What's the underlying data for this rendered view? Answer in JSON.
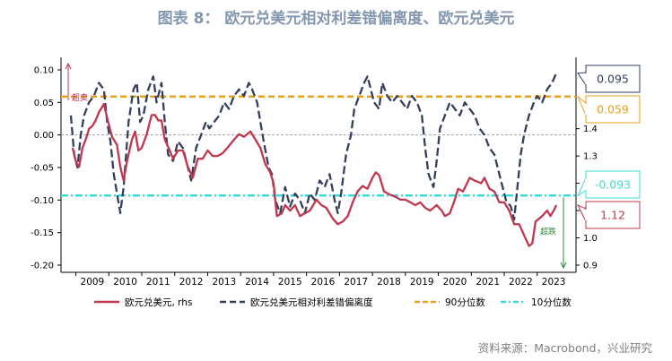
{
  "title": "图表 8： 欧元兑美元相对利差错偏离度、欧元兑美元",
  "source": "资料来源：Macrobond，兴业研究",
  "colors": {
    "eurusd": "#c0384f",
    "deviation": "#333f5c",
    "p90": "#e8a21c",
    "p10": "#3ddad7",
    "zero": "#a0a0a0",
    "callout_top_border": "#333f5c",
    "callout_p90_border": "#e8a21c",
    "callout_p10_border": "#3ddad7",
    "callout_eur_border": "#c0384f",
    "annot_up": "#c0384f",
    "annot_down": "#2e8b3a"
  },
  "chart_data": {
    "type": "line",
    "x_labels": [
      "2009",
      "2010",
      "2011",
      "2012",
      "2013",
      "2014",
      "2015",
      "2016",
      "2017",
      "2018",
      "2019",
      "2020",
      "2021",
      "2022",
      "2023"
    ],
    "y_left": {
      "min": -0.2,
      "max": 0.1,
      "ticks": [
        "0.10",
        "0.05",
        "0.00",
        "-0.05",
        "-0.10",
        "-0.15",
        "-0.20"
      ]
    },
    "y_right": {
      "min": 0.9,
      "max": 1.6,
      "ticks": [
        "1.4",
        "1.3",
        "1.2",
        "1.1",
        "1.0",
        "0.9"
      ]
    },
    "series": [
      {
        "name": "欧元兑美元, rhs",
        "axis": "right",
        "style": "solid",
        "points": [
          [
            2008.9,
            1.33
          ],
          [
            2009.0,
            1.28
          ],
          [
            2009.1,
            1.26
          ],
          [
            2009.2,
            1.33
          ],
          [
            2009.3,
            1.36
          ],
          [
            2009.4,
            1.4
          ],
          [
            2009.5,
            1.41
          ],
          [
            2009.6,
            1.43
          ],
          [
            2009.7,
            1.46
          ],
          [
            2009.85,
            1.49
          ],
          [
            2009.95,
            1.44
          ],
          [
            2010.1,
            1.37
          ],
          [
            2010.25,
            1.34
          ],
          [
            2010.35,
            1.26
          ],
          [
            2010.45,
            1.21
          ],
          [
            2010.55,
            1.28
          ],
          [
            2010.7,
            1.36
          ],
          [
            2010.8,
            1.39
          ],
          [
            2010.9,
            1.32
          ],
          [
            2011.0,
            1.33
          ],
          [
            2011.15,
            1.38
          ],
          [
            2011.3,
            1.45
          ],
          [
            2011.4,
            1.45
          ],
          [
            2011.5,
            1.43
          ],
          [
            2011.6,
            1.43
          ],
          [
            2011.7,
            1.36
          ],
          [
            2011.85,
            1.32
          ],
          [
            2011.95,
            1.29
          ],
          [
            2012.1,
            1.32
          ],
          [
            2012.25,
            1.32
          ],
          [
            2012.4,
            1.26
          ],
          [
            2012.55,
            1.22
          ],
          [
            2012.7,
            1.29
          ],
          [
            2012.85,
            1.29
          ],
          [
            2013.0,
            1.32
          ],
          [
            2013.15,
            1.3
          ],
          [
            2013.3,
            1.3
          ],
          [
            2013.45,
            1.31
          ],
          [
            2013.6,
            1.33
          ],
          [
            2013.8,
            1.36
          ],
          [
            2013.95,
            1.38
          ],
          [
            2014.1,
            1.37
          ],
          [
            2014.3,
            1.39
          ],
          [
            2014.45,
            1.36
          ],
          [
            2014.6,
            1.33
          ],
          [
            2014.75,
            1.27
          ],
          [
            2014.9,
            1.24
          ],
          [
            2015.0,
            1.2
          ],
          [
            2015.1,
            1.08
          ],
          [
            2015.25,
            1.09
          ],
          [
            2015.35,
            1.12
          ],
          [
            2015.5,
            1.1
          ],
          [
            2015.65,
            1.12
          ],
          [
            2015.8,
            1.08
          ],
          [
            2015.95,
            1.09
          ],
          [
            2016.1,
            1.1
          ],
          [
            2016.3,
            1.14
          ],
          [
            2016.45,
            1.12
          ],
          [
            2016.6,
            1.11
          ],
          [
            2016.8,
            1.07
          ],
          [
            2016.95,
            1.05
          ],
          [
            2017.1,
            1.06
          ],
          [
            2017.25,
            1.08
          ],
          [
            2017.4,
            1.13
          ],
          [
            2017.55,
            1.17
          ],
          [
            2017.7,
            1.19
          ],
          [
            2017.85,
            1.18
          ],
          [
            2018.0,
            1.22
          ],
          [
            2018.1,
            1.24
          ],
          [
            2018.2,
            1.23
          ],
          [
            2018.35,
            1.17
          ],
          [
            2018.5,
            1.16
          ],
          [
            2018.7,
            1.15
          ],
          [
            2018.85,
            1.14
          ],
          [
            2019.0,
            1.14
          ],
          [
            2019.15,
            1.13
          ],
          [
            2019.3,
            1.12
          ],
          [
            2019.45,
            1.13
          ],
          [
            2019.6,
            1.11
          ],
          [
            2019.75,
            1.1
          ],
          [
            2019.95,
            1.12
          ],
          [
            2020.1,
            1.1
          ],
          [
            2020.2,
            1.08
          ],
          [
            2020.35,
            1.09
          ],
          [
            2020.5,
            1.14
          ],
          [
            2020.6,
            1.18
          ],
          [
            2020.75,
            1.17
          ],
          [
            2020.95,
            1.22
          ],
          [
            2021.1,
            1.21
          ],
          [
            2021.3,
            1.2
          ],
          [
            2021.4,
            1.22
          ],
          [
            2021.55,
            1.18
          ],
          [
            2021.7,
            1.17
          ],
          [
            2021.85,
            1.13
          ],
          [
            2022.0,
            1.13
          ],
          [
            2022.15,
            1.1
          ],
          [
            2022.3,
            1.05
          ],
          [
            2022.45,
            1.05
          ],
          [
            2022.6,
            1.01
          ],
          [
            2022.75,
            0.97
          ],
          [
            2022.85,
            0.98
          ],
          [
            2022.95,
            1.06
          ],
          [
            2023.05,
            1.07
          ],
          [
            2023.15,
            1.08
          ],
          [
            2023.3,
            1.1
          ],
          [
            2023.4,
            1.08
          ],
          [
            2023.5,
            1.1
          ],
          [
            2023.58,
            1.12
          ]
        ]
      },
      {
        "name": "欧元兑美元相对利差错偏离度",
        "axis": "left",
        "style": "dashed",
        "points": [
          [
            2008.85,
            0.03
          ],
          [
            2008.95,
            -0.03
          ],
          [
            2009.05,
            -0.05
          ],
          [
            2009.15,
            0.0
          ],
          [
            2009.25,
            0.03
          ],
          [
            2009.4,
            0.05
          ],
          [
            2009.55,
            0.06
          ],
          [
            2009.7,
            0.08
          ],
          [
            2009.85,
            0.07
          ],
          [
            2009.95,
            0.02
          ],
          [
            2010.05,
            -0.01
          ],
          [
            2010.15,
            -0.06
          ],
          [
            2010.25,
            -0.09
          ],
          [
            2010.35,
            -0.12
          ],
          [
            2010.45,
            -0.08
          ],
          [
            2010.6,
            0.02
          ],
          [
            2010.75,
            0.07
          ],
          [
            2010.85,
            0.08
          ],
          [
            2010.95,
            0.02
          ],
          [
            2011.05,
            0.03
          ],
          [
            2011.2,
            0.07
          ],
          [
            2011.35,
            0.09
          ],
          [
            2011.45,
            0.05
          ],
          [
            2011.6,
            0.08
          ],
          [
            2011.7,
            0.02
          ],
          [
            2011.8,
            -0.03
          ],
          [
            2011.95,
            -0.04
          ],
          [
            2012.1,
            -0.01
          ],
          [
            2012.25,
            -0.02
          ],
          [
            2012.4,
            -0.05
          ],
          [
            2012.5,
            -0.07
          ],
          [
            2012.65,
            -0.02
          ],
          [
            2012.8,
            0.0
          ],
          [
            2012.95,
            0.02
          ],
          [
            2013.05,
            0.01
          ],
          [
            2013.2,
            0.02
          ],
          [
            2013.35,
            0.03
          ],
          [
            2013.5,
            0.05
          ],
          [
            2013.65,
            0.04
          ],
          [
            2013.8,
            0.06
          ],
          [
            2013.95,
            0.07
          ],
          [
            2014.1,
            0.06
          ],
          [
            2014.25,
            0.08
          ],
          [
            2014.35,
            0.07
          ],
          [
            2014.5,
            0.05
          ],
          [
            2014.6,
            0.02
          ],
          [
            2014.7,
            -0.01
          ],
          [
            2014.85,
            -0.05
          ],
          [
            2014.95,
            -0.06
          ],
          [
            2015.05,
            -0.1
          ],
          [
            2015.2,
            -0.12
          ],
          [
            2015.35,
            -0.08
          ],
          [
            2015.5,
            -0.11
          ],
          [
            2015.65,
            -0.09
          ],
          [
            2015.8,
            -0.1
          ],
          [
            2015.95,
            -0.12
          ],
          [
            2016.1,
            -0.09
          ],
          [
            2016.25,
            -0.1
          ],
          [
            2016.4,
            -0.07
          ],
          [
            2016.55,
            -0.08
          ],
          [
            2016.7,
            -0.06
          ],
          [
            2016.85,
            -0.1
          ],
          [
            2016.95,
            -0.12
          ],
          [
            2017.05,
            -0.09
          ],
          [
            2017.2,
            -0.03
          ],
          [
            2017.35,
            0.0
          ],
          [
            2017.45,
            0.04
          ],
          [
            2017.6,
            0.06
          ],
          [
            2017.75,
            0.08
          ],
          [
            2017.85,
            0.09
          ],
          [
            2017.95,
            0.07
          ],
          [
            2018.05,
            0.05
          ],
          [
            2018.2,
            0.04
          ],
          [
            2018.3,
            0.08
          ],
          [
            2018.45,
            0.06
          ],
          [
            2018.6,
            0.05
          ],
          [
            2018.75,
            0.06
          ],
          [
            2018.9,
            0.05
          ],
          [
            2019.05,
            0.04
          ],
          [
            2019.2,
            0.06
          ],
          [
            2019.35,
            0.05
          ],
          [
            2019.5,
            0.03
          ],
          [
            2019.6,
            -0.02
          ],
          [
            2019.7,
            -0.06
          ],
          [
            2019.85,
            -0.08
          ],
          [
            2019.95,
            -0.04
          ],
          [
            2020.05,
            0.01
          ],
          [
            2020.2,
            0.03
          ],
          [
            2020.35,
            0.05
          ],
          [
            2020.5,
            0.04
          ],
          [
            2020.65,
            0.03
          ],
          [
            2020.8,
            0.05
          ],
          [
            2020.95,
            0.04
          ],
          [
            2021.1,
            0.03
          ],
          [
            2021.25,
            0.01
          ],
          [
            2021.4,
            0.0
          ],
          [
            2021.55,
            -0.02
          ],
          [
            2021.7,
            -0.03
          ],
          [
            2021.85,
            -0.06
          ],
          [
            2021.95,
            -0.08
          ],
          [
            2022.05,
            -0.1
          ],
          [
            2022.2,
            -0.11
          ],
          [
            2022.3,
            -0.13
          ],
          [
            2022.4,
            -0.08
          ],
          [
            2022.5,
            -0.03
          ],
          [
            2022.6,
            0.0
          ],
          [
            2022.75,
            0.03
          ],
          [
            2022.9,
            0.05
          ],
          [
            2023.0,
            0.06
          ],
          [
            2023.15,
            0.05
          ],
          [
            2023.3,
            0.07
          ],
          [
            2023.45,
            0.08
          ],
          [
            2023.58,
            0.095
          ]
        ]
      },
      {
        "name": "90分位数",
        "axis": "left",
        "style": "dashed",
        "value": 0.059
      },
      {
        "name": "10分位数",
        "axis": "left",
        "style": "dashdot",
        "value": -0.093
      }
    ],
    "callouts": [
      {
        "label": "0.095",
        "color_key": "callout_top_border",
        "text_color": "#333f5c"
      },
      {
        "label": "0.059",
        "color_key": "callout_p90_border",
        "text_color": "#e8a21c"
      },
      {
        "label": "-0.093",
        "color_key": "callout_p10_border",
        "text_color": "#3ddad7"
      },
      {
        "label": "1.12",
        "color_key": "callout_eur_border",
        "text_color": "#c0384f"
      }
    ],
    "annotations": [
      {
        "label": "超卖",
        "direction": "up"
      },
      {
        "label": "超跌",
        "direction": "down"
      }
    ],
    "grid": false,
    "legend_position": "bottom"
  }
}
